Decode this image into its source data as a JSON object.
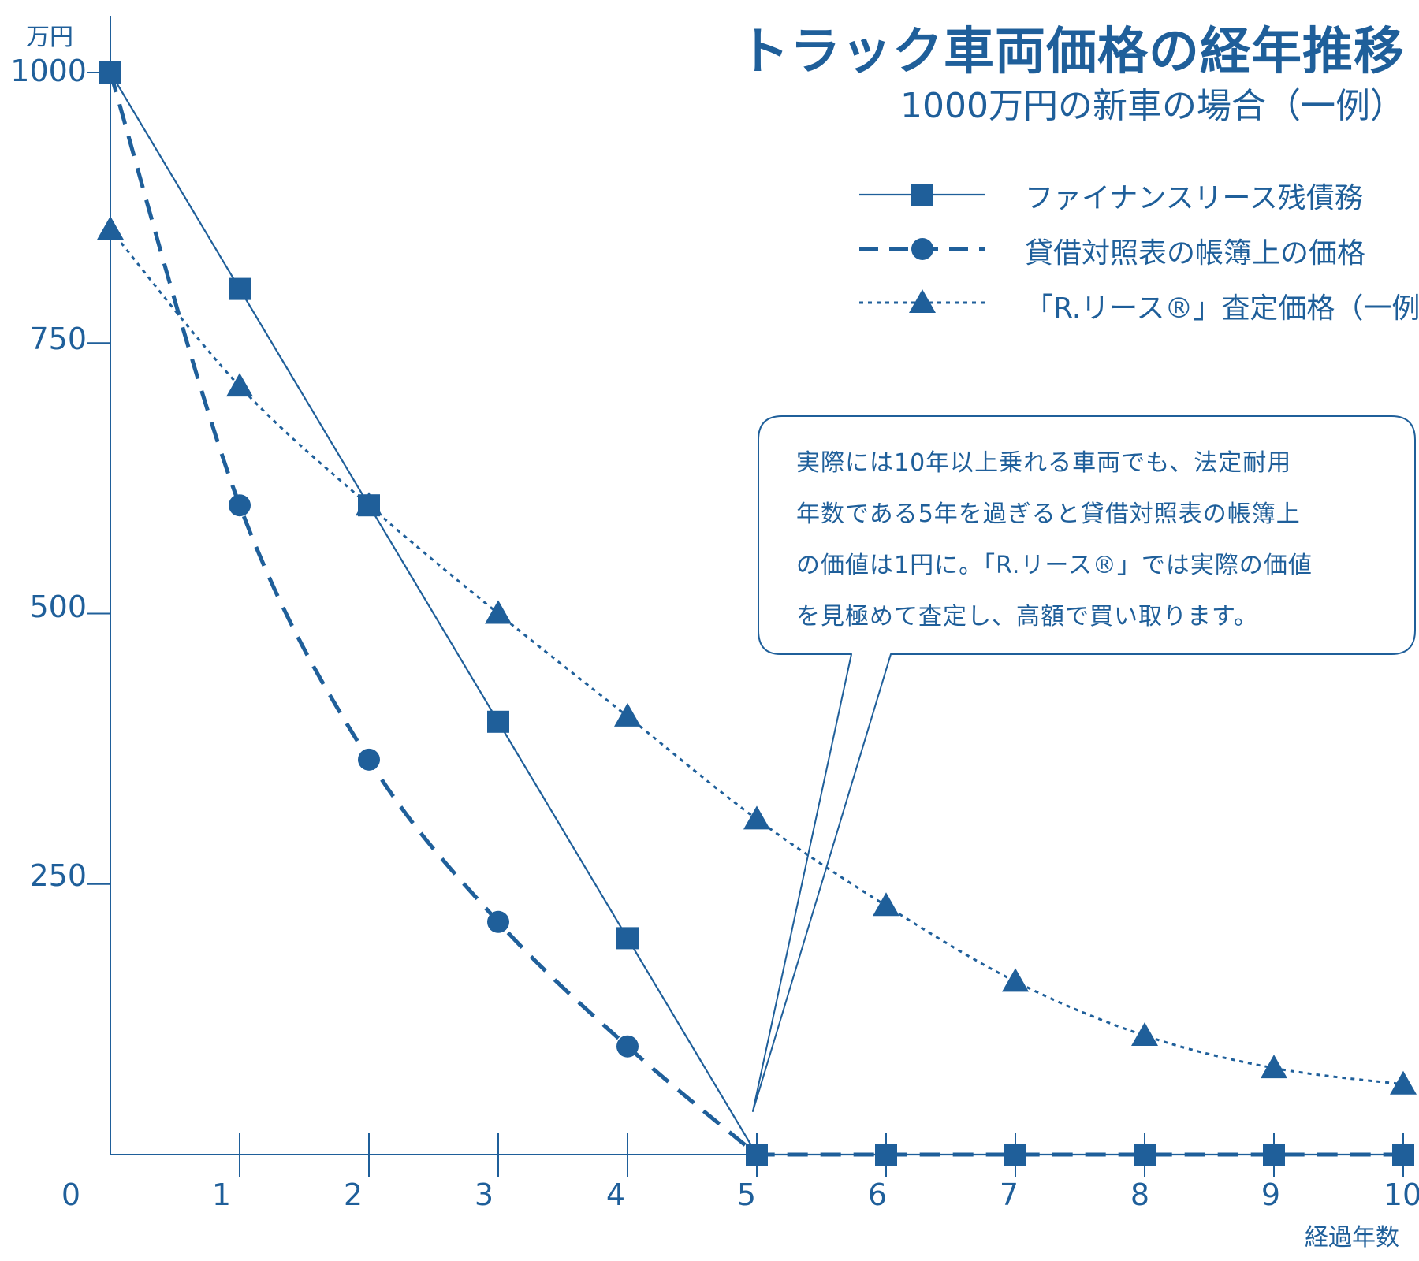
{
  "chart_data": {
    "type": "line",
    "title": "トラック車両価格の経年推移",
    "subtitle": "1000万円の新車の場合（一例）",
    "ylabel": "万円",
    "xlabel": "経過年数",
    "ylim": [
      0,
      1000
    ],
    "xlim": [
      0,
      10
    ],
    "x_ticks": [
      "0",
      "1",
      "2",
      "3",
      "4",
      "5",
      "6",
      "7",
      "8",
      "9",
      "10"
    ],
    "y_ticks": [
      "250",
      "500",
      "750",
      "1000"
    ],
    "legend_position": "top-right",
    "grid": false,
    "series": [
      {
        "name": "ファイナンスリース残債務",
        "style": "solid",
        "marker": "square",
        "x": [
          0,
          1,
          2,
          3,
          4,
          5,
          6,
          7,
          8,
          9,
          10
        ],
        "y": [
          1000,
          800,
          600,
          400,
          200,
          0,
          0,
          0,
          0,
          0,
          0
        ]
      },
      {
        "name": "貸借対照表の帳簿上の価格",
        "style": "dashed",
        "marker": "circle",
        "x": [
          0,
          1,
          2,
          3,
          4,
          5,
          6,
          7,
          8,
          9,
          10
        ],
        "y": [
          1000,
          600,
          365,
          215,
          100,
          0,
          0,
          0,
          0,
          0,
          0
        ]
      },
      {
        "name": "「R.リース®」査定価格（一例）",
        "style": "dotted",
        "marker": "triangle",
        "x": [
          0,
          1,
          2,
          3,
          4,
          5,
          6,
          7,
          8,
          9,
          10
        ],
        "y": [
          855,
          710,
          600,
          500,
          405,
          310,
          230,
          160,
          110,
          80,
          65
        ]
      }
    ],
    "annotation": [
      "実際には10年以上乗れる車両でも、法定耐用",
      "年数である5年を過ぎると貸借対照表の帳簿上",
      "の価値は1円に。「R.リース®」では実際の価値",
      "を見極めて査定し、高額で買い取ります。"
    ]
  },
  "colors": {
    "primary": "#1f5f9a"
  }
}
